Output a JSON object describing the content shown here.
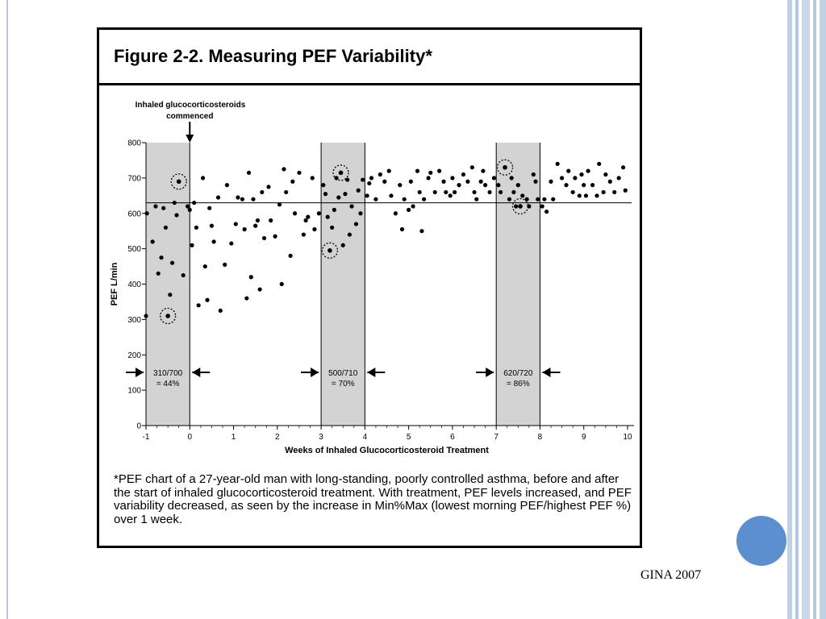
{
  "figure": {
    "title": "Figure 2-2.  Measuring PEF Variability*",
    "caption": "*PEF chart of a 27-year-old man with long-standing, poorly controlled asthma, before and after the start of inhaled glucocorticosteroid treatment.  With treatment, PEF levels increased, and PEF variability decreased, as seen by the increase in Min%Max (lowest morning PEF/highest PEF %) over 1 week."
  },
  "credit": "GINA 2007",
  "colors": {
    "shade": "#d3d3d3",
    "accent": "#5b8fd0",
    "stripes": "#b8c7dd"
  },
  "chart_data": {
    "type": "scatter",
    "xlabel": "Weeks of Inhaled Glucocorticosteroid Treatment",
    "ylabel": "PEF L/min",
    "xlim": [
      -1,
      10
    ],
    "ylim": [
      0,
      800
    ],
    "xticks": [
      "-1",
      "0",
      "1",
      "2",
      "3",
      "4",
      "5",
      "6",
      "7",
      "8",
      "9",
      "10"
    ],
    "yticks": [
      "0",
      "100",
      "200",
      "300",
      "400",
      "500",
      "600",
      "700",
      "800"
    ],
    "reference_line": 630,
    "annotation": "Inhaled glucocorticosteroids commenced",
    "shaded_weeks": [
      {
        "range": [
          -1,
          0
        ],
        "label1": "310/700",
        "label2": "= 44%"
      },
      {
        "range": [
          3,
          4
        ],
        "label1": "500/710",
        "label2": "= 70%"
      },
      {
        "range": [
          7,
          8
        ],
        "label1": "620/720",
        "label2": "= 86%"
      }
    ],
    "highlighted": [
      [
        -0.5,
        310
      ],
      [
        -0.25,
        690
      ],
      [
        3.45,
        715
      ],
      [
        3.2,
        495
      ],
      [
        7.2,
        730
      ],
      [
        7.55,
        620
      ]
    ],
    "points": [
      [
        -1.0,
        310
      ],
      [
        -0.98,
        600
      ],
      [
        -0.85,
        520
      ],
      [
        -0.78,
        620
      ],
      [
        -0.72,
        430
      ],
      [
        -0.65,
        475
      ],
      [
        -0.6,
        615
      ],
      [
        -0.55,
        560
      ],
      [
        -0.5,
        310
      ],
      [
        -0.45,
        370
      ],
      [
        -0.4,
        460
      ],
      [
        -0.35,
        630
      ],
      [
        -0.3,
        595
      ],
      [
        -0.25,
        690
      ],
      [
        -0.15,
        425
      ],
      [
        -0.05,
        620
      ],
      [
        0.0,
        610
      ],
      [
        0.05,
        510
      ],
      [
        0.1,
        630
      ],
      [
        0.15,
        560
      ],
      [
        0.2,
        340
      ],
      [
        0.3,
        700
      ],
      [
        0.35,
        450
      ],
      [
        0.4,
        355
      ],
      [
        0.45,
        615
      ],
      [
        0.5,
        565
      ],
      [
        0.55,
        520
      ],
      [
        0.65,
        645
      ],
      [
        0.7,
        325
      ],
      [
        0.8,
        455
      ],
      [
        0.85,
        680
      ],
      [
        0.95,
        515
      ],
      [
        1.05,
        570
      ],
      [
        1.1,
        645
      ],
      [
        1.2,
        640
      ],
      [
        1.25,
        555
      ],
      [
        1.3,
        360
      ],
      [
        1.35,
        715
      ],
      [
        1.4,
        420
      ],
      [
        1.45,
        640
      ],
      [
        1.5,
        565
      ],
      [
        1.55,
        580
      ],
      [
        1.6,
        385
      ],
      [
        1.65,
        660
      ],
      [
        1.7,
        530
      ],
      [
        1.8,
        675
      ],
      [
        1.85,
        580
      ],
      [
        1.95,
        535
      ],
      [
        2.05,
        625
      ],
      [
        2.1,
        400
      ],
      [
        2.15,
        725
      ],
      [
        2.2,
        660
      ],
      [
        2.3,
        480
      ],
      [
        2.35,
        690
      ],
      [
        2.4,
        600
      ],
      [
        2.5,
        715
      ],
      [
        2.6,
        540
      ],
      [
        2.65,
        580
      ],
      [
        2.7,
        590
      ],
      [
        2.8,
        700
      ],
      [
        2.85,
        555
      ],
      [
        2.95,
        600
      ],
      [
        3.05,
        680
      ],
      [
        3.1,
        655
      ],
      [
        3.15,
        590
      ],
      [
        3.2,
        495
      ],
      [
        3.25,
        560
      ],
      [
        3.3,
        610
      ],
      [
        3.35,
        700
      ],
      [
        3.4,
        645
      ],
      [
        3.45,
        715
      ],
      [
        3.5,
        510
      ],
      [
        3.55,
        655
      ],
      [
        3.6,
        695
      ],
      [
        3.65,
        540
      ],
      [
        3.7,
        620
      ],
      [
        3.8,
        570
      ],
      [
        3.85,
        665
      ],
      [
        3.9,
        600
      ],
      [
        3.95,
        695
      ],
      [
        4.05,
        650
      ],
      [
        4.1,
        685
      ],
      [
        4.15,
        700
      ],
      [
        4.25,
        640
      ],
      [
        4.35,
        710
      ],
      [
        4.45,
        690
      ],
      [
        4.55,
        720
      ],
      [
        4.6,
        650
      ],
      [
        4.7,
        600
      ],
      [
        4.8,
        680
      ],
      [
        4.85,
        555
      ],
      [
        4.9,
        640
      ],
      [
        5.0,
        610
      ],
      [
        5.05,
        690
      ],
      [
        5.1,
        620
      ],
      [
        5.2,
        720
      ],
      [
        5.25,
        660
      ],
      [
        5.3,
        550
      ],
      [
        5.35,
        640
      ],
      [
        5.45,
        700
      ],
      [
        5.5,
        715
      ],
      [
        5.6,
        660
      ],
      [
        5.7,
        720
      ],
      [
        5.8,
        690
      ],
      [
        5.85,
        660
      ],
      [
        5.95,
        650
      ],
      [
        6.0,
        700
      ],
      [
        6.05,
        660
      ],
      [
        6.15,
        680
      ],
      [
        6.25,
        710
      ],
      [
        6.35,
        690
      ],
      [
        6.45,
        730
      ],
      [
        6.5,
        660
      ],
      [
        6.55,
        640
      ],
      [
        6.65,
        690
      ],
      [
        6.7,
        720
      ],
      [
        6.75,
        680
      ],
      [
        6.85,
        660
      ],
      [
        6.95,
        700
      ],
      [
        7.05,
        680
      ],
      [
        7.1,
        660
      ],
      [
        7.2,
        730
      ],
      [
        7.3,
        640
      ],
      [
        7.35,
        700
      ],
      [
        7.4,
        660
      ],
      [
        7.45,
        620
      ],
      [
        7.5,
        680
      ],
      [
        7.55,
        620
      ],
      [
        7.6,
        650
      ],
      [
        7.7,
        640
      ],
      [
        7.75,
        620
      ],
      [
        7.85,
        710
      ],
      [
        7.9,
        690
      ],
      [
        7.95,
        640
      ],
      [
        8.05,
        620
      ],
      [
        8.1,
        640
      ],
      [
        8.15,
        605
      ],
      [
        8.25,
        690
      ],
      [
        8.3,
        640
      ],
      [
        8.4,
        740
      ],
      [
        8.5,
        700
      ],
      [
        8.6,
        680
      ],
      [
        8.65,
        720
      ],
      [
        8.75,
        660
      ],
      [
        8.8,
        700
      ],
      [
        8.9,
        650
      ],
      [
        8.95,
        710
      ],
      [
        9.0,
        680
      ],
      [
        9.05,
        650
      ],
      [
        9.1,
        720
      ],
      [
        9.2,
        680
      ],
      [
        9.3,
        650
      ],
      [
        9.35,
        740
      ],
      [
        9.45,
        660
      ],
      [
        9.5,
        710
      ],
      [
        9.6,
        690
      ],
      [
        9.7,
        660
      ],
      [
        9.8,
        700
      ],
      [
        9.9,
        730
      ],
      [
        9.95,
        665
      ]
    ]
  }
}
